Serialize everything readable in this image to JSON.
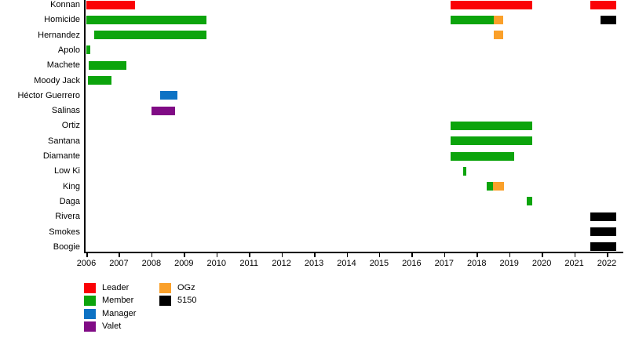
{
  "chart_data": {
    "type": "bar",
    "subtype": "gantt-membership-timeline",
    "xlabel": "",
    "ylabel": "",
    "xlim": [
      2006,
      2022.5
    ],
    "grid": false,
    "legend_position": "bottom-left",
    "x_axis": {
      "tick_years": [
        2006,
        2007,
        2008,
        2009,
        2010,
        2011,
        2012,
        2013,
        2014,
        2015,
        2016,
        2017,
        2018,
        2019,
        2020,
        2021,
        2022
      ]
    },
    "colors": {
      "Leader": "#fa0206",
      "Member": "#0ca40c",
      "Manager": "#0d72c4",
      "Valet": "#800b85",
      "OGz": "#faa02a",
      "5150": "#000000"
    },
    "legend": [
      {
        "label": "Leader",
        "role": "Leader"
      },
      {
        "label": "Member",
        "role": "Member"
      },
      {
        "label": "Manager",
        "role": "Manager"
      },
      {
        "label": "Valet",
        "role": "Valet"
      },
      {
        "label": "OGz",
        "role": "OGz"
      },
      {
        "label": "5150",
        "role": "5150"
      }
    ],
    "rows": [
      {
        "label": "Konnan",
        "segments": [
          {
            "role": "Leader",
            "start": 2006.0,
            "end": 2007.5
          },
          {
            "role": "Leader",
            "start": 2017.2,
            "end": 2019.7
          },
          {
            "role": "Leader",
            "start": 2021.5,
            "end": 2022.3
          }
        ]
      },
      {
        "label": "Homicide",
        "segments": [
          {
            "role": "Member",
            "start": 2006.0,
            "end": 2009.7
          },
          {
            "role": "Member",
            "start": 2017.2,
            "end": 2018.53
          },
          {
            "role": "OGz",
            "start": 2018.53,
            "end": 2018.82
          },
          {
            "role": "5150",
            "start": 2021.8,
            "end": 2022.3
          }
        ]
      },
      {
        "label": "Hernandez",
        "segments": [
          {
            "role": "Member",
            "start": 2006.25,
            "end": 2009.7
          },
          {
            "role": "OGz",
            "start": 2018.53,
            "end": 2018.82
          }
        ]
      },
      {
        "label": "Apolo",
        "segments": [
          {
            "role": "Member",
            "start": 2006.0,
            "end": 2006.12
          }
        ]
      },
      {
        "label": "Machete",
        "segments": [
          {
            "role": "Member",
            "start": 2006.08,
            "end": 2007.22
          }
        ]
      },
      {
        "label": "Moody Jack",
        "segments": [
          {
            "role": "Member",
            "start": 2006.04,
            "end": 2006.78
          }
        ]
      },
      {
        "label": "Héctor Guerrero",
        "segments": [
          {
            "role": "Manager",
            "start": 2008.27,
            "end": 2008.8
          }
        ]
      },
      {
        "label": "Salinas",
        "segments": [
          {
            "role": "Valet",
            "start": 2008.0,
            "end": 2008.72
          }
        ]
      },
      {
        "label": "Ortiz",
        "segments": [
          {
            "role": "Member",
            "start": 2017.2,
            "end": 2019.7
          }
        ]
      },
      {
        "label": "Santana",
        "segments": [
          {
            "role": "Member",
            "start": 2017.2,
            "end": 2019.7
          }
        ]
      },
      {
        "label": "Diamante",
        "segments": [
          {
            "role": "Member",
            "start": 2017.2,
            "end": 2019.15
          }
        ]
      },
      {
        "label": "Low Ki",
        "segments": [
          {
            "role": "Member",
            "start": 2017.58,
            "end": 2017.68
          }
        ]
      },
      {
        "label": "King",
        "segments": [
          {
            "role": "Member",
            "start": 2018.3,
            "end": 2018.5
          },
          {
            "role": "OGz",
            "start": 2018.5,
            "end": 2018.85
          }
        ]
      },
      {
        "label": "Daga",
        "segments": [
          {
            "role": "Member",
            "start": 2019.55,
            "end": 2019.7
          }
        ]
      },
      {
        "label": "Rivera",
        "segments": [
          {
            "role": "5150",
            "start": 2021.5,
            "end": 2022.3
          }
        ]
      },
      {
        "label": "Smokes",
        "segments": [
          {
            "role": "5150",
            "start": 2021.5,
            "end": 2022.3
          }
        ]
      },
      {
        "label": "Boogie",
        "segments": [
          {
            "role": "5150",
            "start": 2021.5,
            "end": 2022.3
          }
        ]
      }
    ]
  }
}
